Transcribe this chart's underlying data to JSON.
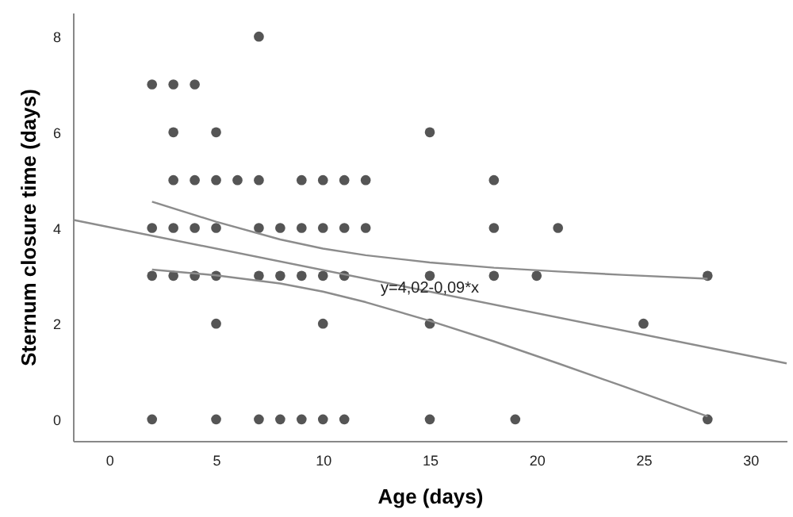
{
  "chart_data": {
    "type": "scatter",
    "xlabel": "Age (days)",
    "ylabel": "Sternum closure time (days)",
    "xlim": [
      -1.7,
      31.7
    ],
    "ylim": [
      -0.45,
      8.5
    ],
    "xticks": [
      0,
      5,
      10,
      15,
      20,
      25,
      30
    ],
    "yticks": [
      0,
      2,
      4,
      6,
      8
    ],
    "grid": false,
    "series": [
      {
        "color": "#555555",
        "marker": "circle",
        "x": [
          7,
          2,
          3,
          4,
          3,
          5,
          15,
          3,
          4,
          5,
          6,
          7,
          9,
          10,
          11,
          12,
          18,
          2,
          3,
          4,
          5,
          7,
          8,
          9,
          10,
          11,
          12,
          18,
          21,
          2,
          3,
          4,
          5,
          7,
          8,
          9,
          10,
          11,
          15,
          18,
          20,
          28,
          5,
          10,
          15,
          25,
          2,
          5,
          7,
          8,
          9,
          10,
          11,
          15,
          19,
          28
        ],
        "values": [
          8,
          7,
          7,
          7,
          6,
          6,
          6,
          5,
          5,
          5,
          5,
          5,
          5,
          5,
          5,
          5,
          5,
          4,
          4,
          4,
          4,
          4,
          4,
          4,
          4,
          4,
          4,
          4,
          4,
          3,
          3,
          3,
          3,
          3,
          3,
          3,
          3,
          3,
          3,
          3,
          3,
          3,
          2,
          2,
          2,
          2,
          0,
          0,
          0,
          0,
          0,
          0,
          0,
          0,
          0,
          0
        ]
      },
      {
        "type": "line",
        "color": "#8c8c8c",
        "line_style": "solid",
        "marker": "none",
        "x": [
          -1.7,
          31.7
        ],
        "values": [
          4.17,
          1.17
        ]
      },
      {
        "type": "line",
        "color": "#8c8c8c",
        "line_style": "solid",
        "marker": "none",
        "x": [
          2,
          5,
          8,
          10,
          12,
          15,
          18,
          21,
          24,
          28
        ],
        "values": [
          4.55,
          4.13,
          3.76,
          3.57,
          3.43,
          3.28,
          3.17,
          3.09,
          3.02,
          2.94
        ]
      },
      {
        "type": "line",
        "color": "#8c8c8c",
        "line_style": "solid",
        "marker": "none",
        "x": [
          2,
          5,
          8,
          10,
          12,
          15,
          18,
          21,
          24,
          28
        ],
        "values": [
          3.13,
          3.01,
          2.84,
          2.67,
          2.45,
          2.06,
          1.63,
          1.17,
          0.7,
          0.06
        ]
      }
    ],
    "annotations": [
      {
        "text": "y=4,02-0,09*x",
        "x": 15,
        "y": 2.75
      }
    ]
  }
}
